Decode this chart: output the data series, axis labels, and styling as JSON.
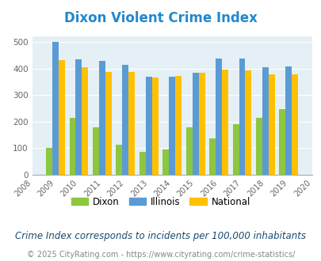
{
  "title": "Dixon Violent Crime Index",
  "title_color": "#2288cc",
  "years": [
    2009,
    2010,
    2011,
    2012,
    2013,
    2014,
    2015,
    2016,
    2017,
    2018,
    2019
  ],
  "dixon": [
    100,
    213,
    180,
    112,
    86,
    96,
    180,
    136,
    191,
    213,
    247
  ],
  "illinois": [
    499,
    435,
    428,
    414,
    370,
    368,
    383,
    438,
    438,
    404,
    409
  ],
  "national": [
    431,
    404,
    387,
    387,
    365,
    372,
    383,
    397,
    394,
    379,
    379
  ],
  "dixon_color": "#8dc63f",
  "illinois_color": "#5b9bd5",
  "national_color": "#ffc000",
  "bg_color": "#e4f0f5",
  "xlim": [
    2008,
    2020
  ],
  "ylim": [
    0,
    520
  ],
  "yticks": [
    0,
    100,
    200,
    300,
    400,
    500
  ],
  "bar_width": 0.27,
  "legend_labels": [
    "Dixon",
    "Illinois",
    "National"
  ],
  "footnote1": "Crime Index corresponds to incidents per 100,000 inhabitants",
  "footnote2": "© 2025 CityRating.com - https://www.cityrating.com/crime-statistics/",
  "footnote1_color": "#1a4a6e",
  "footnote2_color": "#888888",
  "footnote1_size": 8.5,
  "footnote2_size": 7.0,
  "title_fontsize": 12
}
